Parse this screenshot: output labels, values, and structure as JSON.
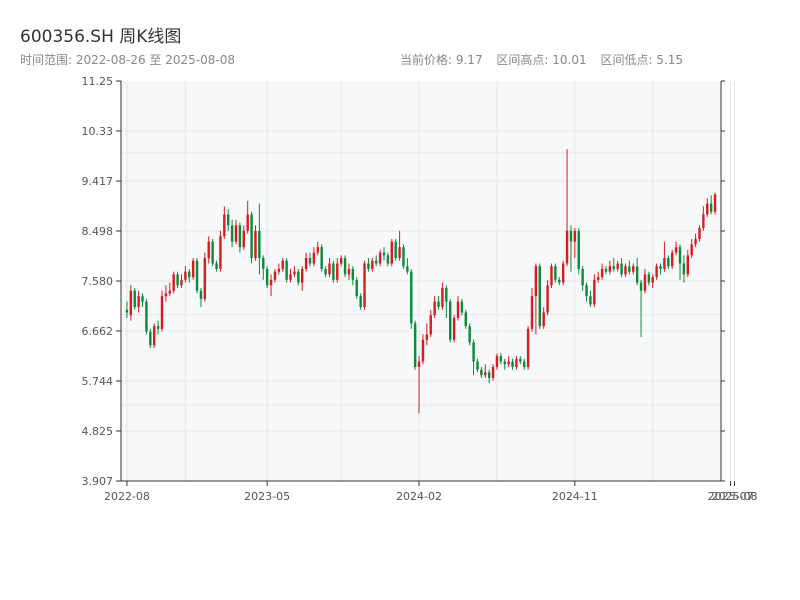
{
  "header": {
    "title": "600356.SH 周K线图",
    "range_label": "时间范围: 2022-08-26 至 2025-08-08",
    "current_price": "当前价格: 9.17",
    "period_high": "区间高点: 10.01",
    "period_low": "区间低点: 5.15"
  },
  "colors": {
    "up": "#d61c1c",
    "down": "#0a8a3a",
    "axis": "#333333",
    "grid": "#e6e6e6",
    "plot_bg": "#f7f8fa"
  },
  "chart_data": {
    "type": "candlestick",
    "title": "600356.SH 周K线图",
    "y_ticks": [
      "3.907",
      "4.825",
      "5.744",
      "6.662",
      "7.580",
      "8.498",
      "9.417",
      "10.33",
      "11.25"
    ],
    "ylim": [
      3.907,
      11.25
    ],
    "x_ticks": [
      {
        "index": 0,
        "label": "2022-08"
      },
      {
        "index": 36,
        "label": "2023-05"
      },
      {
        "index": 75,
        "label": "2024-02"
      },
      {
        "index": 115,
        "label": "2024-11"
      },
      {
        "index": 155,
        "label": "2025-07"
      },
      {
        "index": 156,
        "label": "2025-08"
      }
    ],
    "grid": true,
    "candles": [
      [
        7.05,
        7.0,
        7.2,
        6.9
      ],
      [
        6.95,
        7.4,
        7.5,
        6.85
      ],
      [
        7.4,
        7.1,
        7.45,
        7.05
      ],
      [
        7.1,
        7.3,
        7.4,
        7.0
      ],
      [
        7.3,
        7.2,
        7.35,
        7.1
      ],
      [
        7.2,
        6.65,
        7.25,
        6.6
      ],
      [
        6.65,
        6.4,
        6.7,
        6.35
      ],
      [
        6.4,
        6.75,
        6.8,
        6.35
      ],
      [
        6.75,
        6.7,
        6.85,
        6.6
      ],
      [
        6.7,
        7.3,
        7.4,
        6.65
      ],
      [
        7.3,
        7.35,
        7.5,
        7.2
      ],
      [
        7.35,
        7.4,
        7.55,
        7.3
      ],
      [
        7.4,
        7.7,
        7.75,
        7.35
      ],
      [
        7.7,
        7.5,
        7.75,
        7.45
      ],
      [
        7.5,
        7.6,
        7.7,
        7.45
      ],
      [
        7.6,
        7.75,
        7.85,
        7.55
      ],
      [
        7.75,
        7.65,
        7.8,
        7.55
      ],
      [
        7.65,
        7.95,
        8.0,
        7.6
      ],
      [
        7.95,
        7.4,
        8.0,
        7.35
      ],
      [
        7.4,
        7.25,
        7.45,
        7.1
      ],
      [
        7.25,
        8.0,
        8.1,
        7.2
      ],
      [
        8.0,
        8.3,
        8.4,
        7.9
      ],
      [
        8.3,
        7.9,
        8.35,
        7.85
      ],
      [
        7.9,
        7.8,
        7.95,
        7.75
      ],
      [
        7.8,
        8.4,
        8.5,
        7.75
      ],
      [
        8.4,
        8.8,
        8.95,
        8.35
      ],
      [
        8.8,
        8.6,
        8.9,
        8.5
      ],
      [
        8.6,
        8.3,
        8.7,
        8.2
      ],
      [
        8.3,
        8.6,
        8.7,
        8.25
      ],
      [
        8.6,
        8.2,
        8.65,
        8.1
      ],
      [
        8.2,
        8.5,
        8.6,
        8.15
      ],
      [
        8.5,
        8.8,
        9.05,
        8.45
      ],
      [
        8.8,
        8.0,
        8.85,
        7.9
      ],
      [
        8.0,
        8.5,
        8.6,
        7.95
      ],
      [
        8.5,
        8.0,
        9.0,
        7.7
      ],
      [
        8.0,
        7.8,
        8.05,
        7.6
      ],
      [
        7.8,
        7.5,
        7.85,
        7.45
      ],
      [
        7.5,
        7.6,
        7.7,
        7.3
      ],
      [
        7.6,
        7.75,
        7.8,
        7.55
      ],
      [
        7.75,
        7.8,
        7.9,
        7.7
      ],
      [
        7.8,
        7.95,
        8.0,
        7.75
      ],
      [
        7.95,
        7.6,
        8.0,
        7.55
      ],
      [
        7.6,
        7.7,
        7.8,
        7.55
      ],
      [
        7.7,
        7.75,
        7.85,
        7.65
      ],
      [
        7.75,
        7.55,
        7.8,
        7.5
      ],
      [
        7.55,
        7.8,
        7.85,
        7.4
      ],
      [
        7.8,
        8.0,
        8.1,
        7.75
      ],
      [
        8.0,
        7.9,
        8.1,
        7.85
      ],
      [
        7.9,
        8.1,
        8.2,
        7.85
      ],
      [
        8.1,
        8.2,
        8.3,
        8.05
      ],
      [
        8.2,
        7.8,
        8.25,
        7.75
      ],
      [
        7.8,
        7.7,
        7.85,
        7.65
      ],
      [
        7.7,
        7.9,
        8.0,
        7.65
      ],
      [
        7.9,
        7.6,
        7.95,
        7.55
      ],
      [
        7.6,
        7.9,
        8.0,
        7.55
      ],
      [
        7.9,
        8.0,
        8.05,
        7.85
      ],
      [
        8.0,
        7.7,
        8.05,
        7.65
      ],
      [
        7.7,
        7.8,
        7.9,
        7.6
      ],
      [
        7.8,
        7.6,
        7.85,
        7.5
      ],
      [
        7.6,
        7.3,
        7.65,
        7.25
      ],
      [
        7.3,
        7.1,
        7.35,
        7.05
      ],
      [
        7.1,
        7.9,
        7.95,
        7.05
      ],
      [
        7.9,
        7.8,
        8.0,
        7.75
      ],
      [
        7.8,
        7.95,
        8.0,
        7.75
      ],
      [
        7.95,
        7.9,
        8.05,
        7.85
      ],
      [
        7.9,
        8.1,
        8.15,
        7.85
      ],
      [
        8.1,
        8.05,
        8.2,
        7.95
      ],
      [
        8.05,
        7.9,
        8.1,
        7.85
      ],
      [
        7.9,
        8.3,
        8.35,
        7.85
      ],
      [
        8.3,
        8.0,
        8.35,
        7.95
      ],
      [
        8.0,
        8.2,
        8.5,
        7.95
      ],
      [
        8.2,
        7.85,
        8.25,
        7.8
      ],
      [
        7.85,
        7.75,
        8.0,
        7.7
      ],
      [
        7.75,
        6.8,
        7.8,
        6.7
      ],
      [
        6.8,
        6.0,
        6.85,
        5.95
      ],
      [
        6.0,
        6.1,
        6.2,
        5.15
      ],
      [
        6.1,
        6.5,
        6.6,
        6.05
      ],
      [
        6.5,
        6.6,
        6.8,
        6.4
      ],
      [
        6.6,
        6.95,
        7.05,
        6.55
      ],
      [
        6.95,
        7.2,
        7.3,
        6.9
      ],
      [
        7.2,
        7.1,
        7.3,
        7.05
      ],
      [
        7.1,
        7.45,
        7.55,
        7.05
      ],
      [
        7.45,
        7.2,
        7.5,
        6.9
      ],
      [
        7.2,
        6.5,
        7.25,
        6.45
      ],
      [
        6.5,
        6.9,
        6.95,
        6.45
      ],
      [
        6.9,
        7.2,
        7.3,
        6.85
      ],
      [
        7.2,
        7.0,
        7.25,
        6.95
      ],
      [
        7.0,
        6.75,
        7.05,
        6.7
      ],
      [
        6.75,
        6.45,
        6.8,
        6.4
      ],
      [
        6.45,
        6.1,
        6.5,
        5.85
      ],
      [
        6.1,
        5.95,
        6.15,
        5.9
      ],
      [
        5.95,
        5.85,
        6.0,
        5.8
      ],
      [
        5.85,
        5.9,
        6.05,
        5.8
      ],
      [
        5.9,
        5.8,
        5.95,
        5.7
      ],
      [
        5.8,
        6.0,
        6.05,
        5.75
      ],
      [
        6.0,
        6.2,
        6.25,
        5.95
      ],
      [
        6.2,
        6.1,
        6.25,
        6.05
      ],
      [
        6.1,
        6.05,
        6.15,
        5.95
      ],
      [
        6.05,
        6.1,
        6.2,
        6.0
      ],
      [
        6.1,
        6.0,
        6.15,
        5.95
      ],
      [
        6.0,
        6.15,
        6.2,
        5.95
      ],
      [
        6.15,
        6.1,
        6.2,
        6.05
      ],
      [
        6.1,
        6.0,
        6.15,
        5.95
      ],
      [
        6.0,
        6.7,
        6.75,
        5.95
      ],
      [
        6.7,
        7.3,
        7.45,
        6.65
      ],
      [
        7.3,
        7.85,
        7.9,
        6.6
      ],
      [
        7.85,
        6.75,
        7.9,
        6.7
      ],
      [
        6.75,
        7.0,
        7.1,
        6.7
      ],
      [
        7.0,
        7.5,
        7.6,
        6.95
      ],
      [
        7.5,
        7.85,
        7.9,
        7.45
      ],
      [
        7.85,
        7.6,
        7.9,
        7.55
      ],
      [
        7.6,
        7.55,
        7.65,
        7.5
      ],
      [
        7.55,
        7.9,
        7.95,
        7.5
      ],
      [
        7.9,
        8.5,
        10.0,
        7.85
      ],
      [
        8.5,
        8.3,
        8.6,
        7.75
      ],
      [
        8.3,
        8.5,
        8.55,
        8.0
      ],
      [
        8.5,
        7.8,
        8.55,
        7.7
      ],
      [
        7.8,
        7.5,
        7.85,
        7.4
      ],
      [
        7.5,
        7.3,
        7.55,
        7.2
      ],
      [
        7.3,
        7.15,
        7.4,
        7.1
      ],
      [
        7.15,
        7.6,
        7.7,
        7.1
      ],
      [
        7.6,
        7.65,
        7.75,
        7.55
      ],
      [
        7.65,
        7.8,
        7.9,
        7.6
      ],
      [
        7.8,
        7.75,
        7.85,
        7.7
      ],
      [
        7.75,
        7.85,
        7.95,
        7.7
      ],
      [
        7.85,
        7.8,
        8.0,
        7.75
      ],
      [
        7.8,
        7.9,
        7.95,
        7.75
      ],
      [
        7.9,
        7.7,
        8.0,
        7.65
      ],
      [
        7.7,
        7.85,
        7.9,
        7.65
      ],
      [
        7.85,
        7.75,
        7.95,
        7.7
      ],
      [
        7.75,
        7.85,
        7.9,
        7.7
      ],
      [
        7.85,
        7.55,
        8.0,
        7.5
      ],
      [
        7.55,
        7.4,
        7.6,
        6.55
      ],
      [
        7.4,
        7.7,
        7.8,
        7.35
      ],
      [
        7.7,
        7.55,
        7.75,
        7.5
      ],
      [
        7.55,
        7.65,
        7.7,
        7.45
      ],
      [
        7.65,
        7.85,
        7.9,
        7.6
      ],
      [
        7.85,
        7.8,
        7.9,
        7.7
      ],
      [
        7.8,
        8.0,
        8.3,
        7.75
      ],
      [
        8.0,
        7.85,
        8.05,
        7.8
      ],
      [
        7.85,
        8.1,
        8.15,
        7.8
      ],
      [
        8.1,
        8.2,
        8.3,
        8.05
      ],
      [
        8.2,
        7.9,
        8.25,
        7.6
      ],
      [
        7.9,
        7.7,
        8.05,
        7.55
      ],
      [
        7.7,
        8.05,
        8.15,
        7.65
      ],
      [
        8.05,
        8.25,
        8.35,
        8.0
      ],
      [
        8.25,
        8.35,
        8.45,
        8.2
      ],
      [
        8.35,
        8.55,
        8.6,
        8.3
      ],
      [
        8.55,
        8.8,
        8.95,
        8.5
      ],
      [
        8.8,
        9.0,
        9.1,
        8.75
      ],
      [
        9.0,
        8.85,
        9.15,
        8.8
      ],
      [
        8.85,
        9.17,
        9.2,
        8.8
      ]
    ]
  }
}
